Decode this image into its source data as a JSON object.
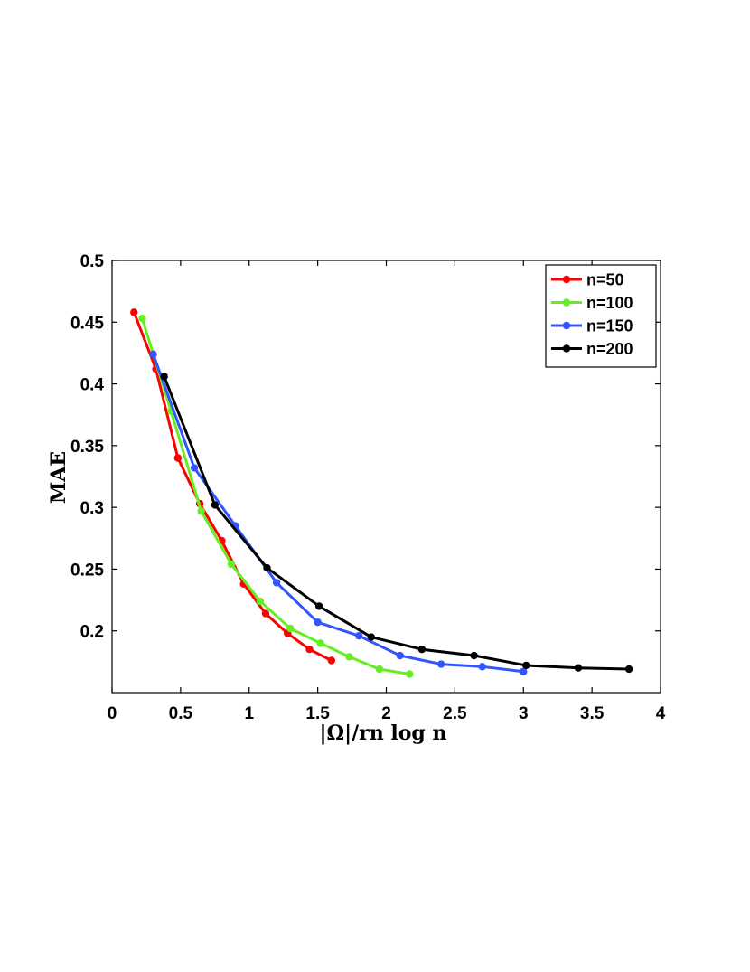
{
  "chart_data": {
    "type": "line",
    "xlabel": "|Ω|/rn log n",
    "ylabel": "MAE",
    "xlim": [
      0,
      4
    ],
    "ylim": [
      0.15,
      0.5
    ],
    "xticks": [
      0,
      0.5,
      1,
      1.5,
      2,
      2.5,
      3,
      3.5,
      4
    ],
    "xtick_labels": [
      "0",
      "0.5",
      "1",
      "1.5",
      "2",
      "2.5",
      "3",
      "3.5",
      "4"
    ],
    "yticks": [
      0.2,
      0.25,
      0.3,
      0.35,
      0.4,
      0.45,
      0.5
    ],
    "ytick_labels": [
      "0.2",
      "0.25",
      "0.3",
      "0.35",
      "0.4",
      "0.45",
      "0.5"
    ],
    "grid": false,
    "legend_position": "top-right",
    "series": [
      {
        "name": "n=50",
        "color": "#ff0000",
        "x": [
          0.16,
          0.32,
          0.48,
          0.64,
          0.8,
          0.96,
          1.12,
          1.28,
          1.44,
          1.6
        ],
        "y": [
          0.458,
          0.412,
          0.34,
          0.303,
          0.273,
          0.238,
          0.214,
          0.198,
          0.185,
          0.176
        ]
      },
      {
        "name": "n=100",
        "color": "#66ee22",
        "x": [
          0.22,
          0.43,
          0.65,
          0.87,
          1.08,
          1.3,
          1.52,
          1.73,
          1.95,
          2.17
        ],
        "y": [
          0.453,
          0.378,
          0.297,
          0.254,
          0.224,
          0.202,
          0.19,
          0.179,
          0.169,
          0.165
        ]
      },
      {
        "name": "n=150",
        "color": "#3355ff",
        "x": [
          0.3,
          0.6,
          0.9,
          1.2,
          1.5,
          1.8,
          2.1,
          2.4,
          2.7,
          3.0
        ],
        "y": [
          0.424,
          0.332,
          0.285,
          0.239,
          0.207,
          0.196,
          0.18,
          0.173,
          0.171,
          0.167
        ]
      },
      {
        "name": "n=200",
        "color": "#000000",
        "x": [
          0.38,
          0.75,
          1.13,
          1.51,
          1.89,
          2.26,
          2.64,
          3.02,
          3.4,
          3.77
        ],
        "y": [
          0.406,
          0.302,
          0.251,
          0.22,
          0.195,
          0.185,
          0.18,
          0.172,
          0.17,
          0.169
        ]
      }
    ]
  }
}
